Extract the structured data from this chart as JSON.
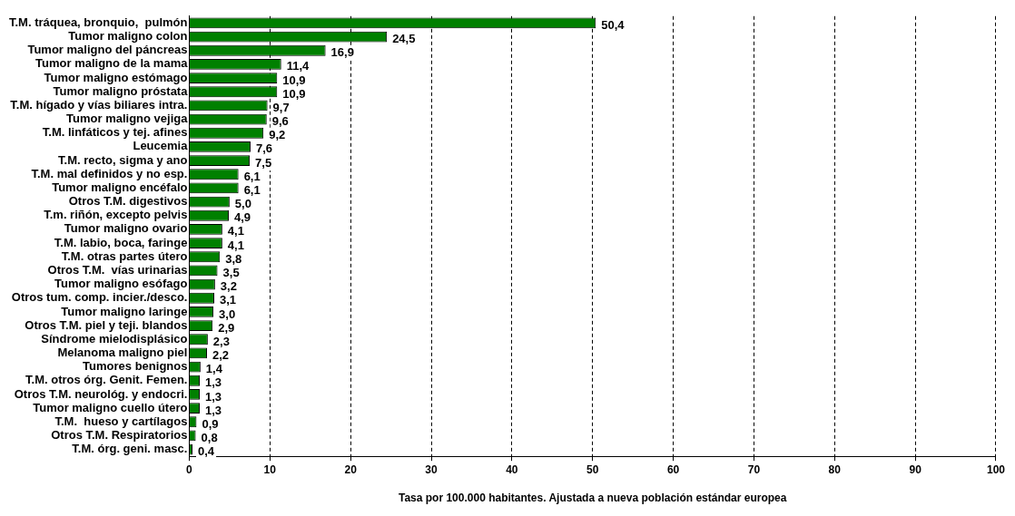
{
  "chart_data": {
    "type": "bar",
    "orientation": "horizontal",
    "xlabel": "Tasa por 100.000 habitantes. Ajustada a nueva población estándar europea",
    "categories": [
      "T.M. tráquea, bronquio,  pulmón",
      "Tumor maligno colon",
      "Tumor maligno del páncreas",
      "Tumor maligno de la mama",
      "Tumor maligno estómago",
      "Tumor maligno próstata",
      "T.M. hígado y vías biliares intra.",
      "Tumor maligno vejiga",
      "T.M. linfáticos y tej. afines",
      "Leucemia",
      "T.M. recto, sigma y ano",
      "T.M. mal definidos y no esp.",
      "Tumor maligno encéfalo",
      "Otros T.M. digestivos",
      "T.m. riñón, excepto pelvis",
      "Tumor maligno ovario",
      "T.M. labio, boca, faringe",
      "T.M. otras partes útero",
      "Otros T.M.  vías urinarias",
      "Tumor maligno esófago",
      "Otros tum. comp. incier./desco.",
      "Tumor maligno laringe",
      "Otros T.M. piel y teji. blandos",
      "Síndrome mielodisplásico",
      "Melanoma maligno piel",
      "Tumores benignos",
      "T.M. otros órg. Genit. Femen.",
      "Otros T.M. neurológ. y endocri.",
      "Tumor maligno cuello útero",
      "T.M.  hueso y cartílagos",
      "Otros T.M. Respiratorios",
      "T.M. órg. geni. masc."
    ],
    "values": [
      50.4,
      24.5,
      16.9,
      11.4,
      10.9,
      10.9,
      9.7,
      9.6,
      9.2,
      7.6,
      7.5,
      6.1,
      6.1,
      5.0,
      4.9,
      4.1,
      4.1,
      3.8,
      3.5,
      3.2,
      3.1,
      3.0,
      2.9,
      2.3,
      2.2,
      1.4,
      1.3,
      1.3,
      1.3,
      0.9,
      0.8,
      0.4
    ],
    "value_labels": [
      "50,4",
      "24,5",
      "16,9",
      "11,4",
      "10,9",
      "10,9",
      "9,7",
      "9,6",
      "9,2",
      "7,6",
      "7,5",
      "6,1",
      "6,1",
      "5,0",
      "4,9",
      "4,1",
      "4,1",
      "3,8",
      "3,5",
      "3,2",
      "3,1",
      "3,0",
      "2,9",
      "2,3",
      "2,2",
      "1,4",
      "1,3",
      "1,3",
      "1,3",
      "0,9",
      "0,8",
      "0,4"
    ],
    "color": "#008000",
    "xlim": [
      0,
      100
    ],
    "xticks": [
      0,
      10,
      20,
      30,
      40,
      50,
      60,
      70,
      80,
      90,
      100
    ],
    "grid": "x",
    "legend": false
  }
}
